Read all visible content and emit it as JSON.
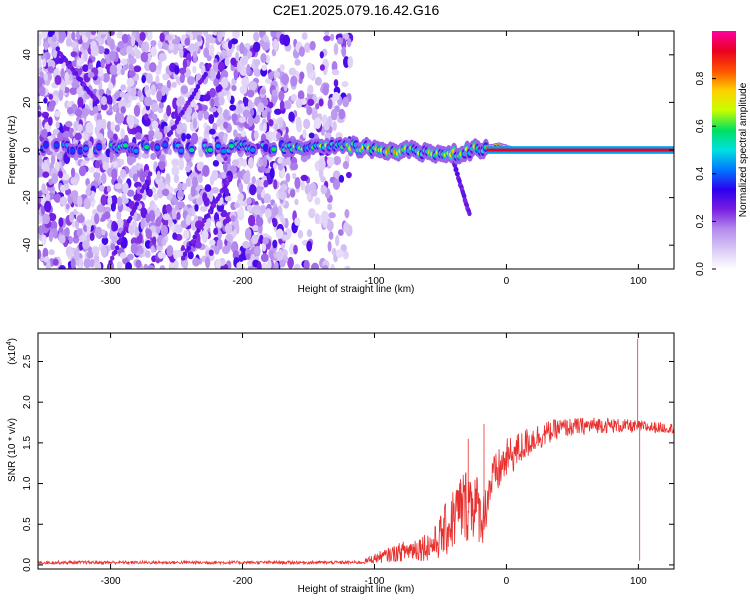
{
  "figure": {
    "title": "C2E1.2025.079.16.42.G16"
  },
  "chart_data": [
    {
      "type": "heatmap",
      "title": "C2E1.2025.079.16.42.G16",
      "xlabel": "Height of straight line (km)",
      "ylabel": "Frequency (Hz)",
      "xlim": [
        -355,
        127
      ],
      "ylim": [
        -50,
        50
      ],
      "x_ticks": [
        -300,
        -200,
        -100,
        0,
        100
      ],
      "y_ticks": [
        -40,
        -20,
        0,
        20,
        40
      ],
      "colorbar": {
        "label": "Normalized spectral amplitude",
        "range": [
          0.0,
          1.0
        ],
        "ticks": [
          0.0,
          0.2,
          0.4,
          0.6,
          0.8
        ],
        "tick_labels": [
          "0.0",
          "0.2",
          "0.4",
          "0.6",
          "0.8"
        ],
        "colormap": [
          "#ffffff",
          "#d9c8f5",
          "#b48ced",
          "#7a1fe0",
          "#2d00f0",
          "#0077ff",
          "#00e0e0",
          "#00e060",
          "#c8ff00",
          "#ffd000",
          "#ff5000",
          "#e80020",
          "#ff00a0"
        ]
      },
      "features": {
        "noise_region_x": [
          -355,
          -118
        ],
        "noise_dense_x": [
          -355,
          -165
        ],
        "sparse_column_x": [
          -165,
          -118
        ],
        "carrier_start_x": -120,
        "carrier_freq_at_x": [
          {
            "x": -355,
            "y": 1
          },
          {
            "x": -150,
            "y": 1
          },
          {
            "x": -120,
            "y": 1.5
          },
          {
            "x": -90,
            "y": 0
          },
          {
            "x": -60,
            "y": -1
          },
          {
            "x": -40,
            "y": -1.5
          },
          {
            "x": -25,
            "y": 0
          },
          {
            "x": -5,
            "y": 2
          },
          {
            "x": 5,
            "y": 0
          },
          {
            "x": 127,
            "y": 0
          }
        ],
        "diagonal_streaks": [
          {
            "x": [
              -260,
              -225
            ],
            "y": [
              2,
              35
            ]
          },
          {
            "x": [
              -300,
              -270
            ],
            "y": [
              -47,
              -10
            ]
          },
          {
            "x": [
              -245,
              -210
            ],
            "y": [
              -45,
              -12
            ]
          },
          {
            "x": [
              -340,
              -310
            ],
            "y": [
              42,
              20
            ]
          }
        ],
        "branch_streak": {
          "x": [
            -40,
            -28
          ],
          "y": [
            -5,
            -27
          ]
        }
      }
    },
    {
      "type": "line",
      "xlabel": "Height of straight line (km)",
      "ylabel": "SNR (10 * v/v)",
      "y_multiplier_label": "(x10",
      "y_multiplier_exp": "4",
      "y_multiplier_close": ")",
      "xlim": [
        -355,
        127
      ],
      "ylim": [
        -0.05,
        2.85
      ],
      "x_ticks": [
        -300,
        -200,
        -100,
        0,
        100
      ],
      "y_ticks": [
        0.0,
        0.5,
        1.0,
        1.5,
        2.0,
        2.5
      ],
      "y_tick_labels": [
        "0.0",
        "0.5",
        "1.0",
        "1.5",
        "2.0",
        "2.5"
      ],
      "series": [
        {
          "color": "#e8312f",
          "envelope": [
            {
              "x": -355,
              "mean": 0.03,
              "amp": 0.02
            },
            {
              "x": -110,
              "mean": 0.03,
              "amp": 0.02
            },
            {
              "x": -100,
              "mean": 0.08,
              "amp": 0.06
            },
            {
              "x": -70,
              "mean": 0.2,
              "amp": 0.15
            },
            {
              "x": -55,
              "mean": 0.25,
              "amp": 0.2
            },
            {
              "x": -45,
              "mean": 0.45,
              "amp": 0.35
            },
            {
              "x": -35,
              "mean": 0.7,
              "amp": 0.45
            },
            {
              "x": -25,
              "mean": 0.8,
              "amp": 0.5
            },
            {
              "x": -18,
              "mean": 0.55,
              "amp": 0.3
            },
            {
              "x": -12,
              "mean": 1.0,
              "amp": 0.3
            },
            {
              "x": 0,
              "mean": 1.3,
              "amp": 0.25
            },
            {
              "x": 20,
              "mean": 1.55,
              "amp": 0.18
            },
            {
              "x": 40,
              "mean": 1.68,
              "amp": 0.12
            },
            {
              "x": 70,
              "mean": 1.72,
              "amp": 0.1
            },
            {
              "x": 127,
              "mean": 1.68,
              "amp": 0.06
            }
          ],
          "spikes": [
            {
              "x": -17,
              "y": 1.73
            },
            {
              "x": -29,
              "y": 1.55
            },
            {
              "x": 99.5,
              "y": 2.78
            },
            {
              "x": 101,
              "y": 0.05
            }
          ]
        }
      ]
    }
  ]
}
